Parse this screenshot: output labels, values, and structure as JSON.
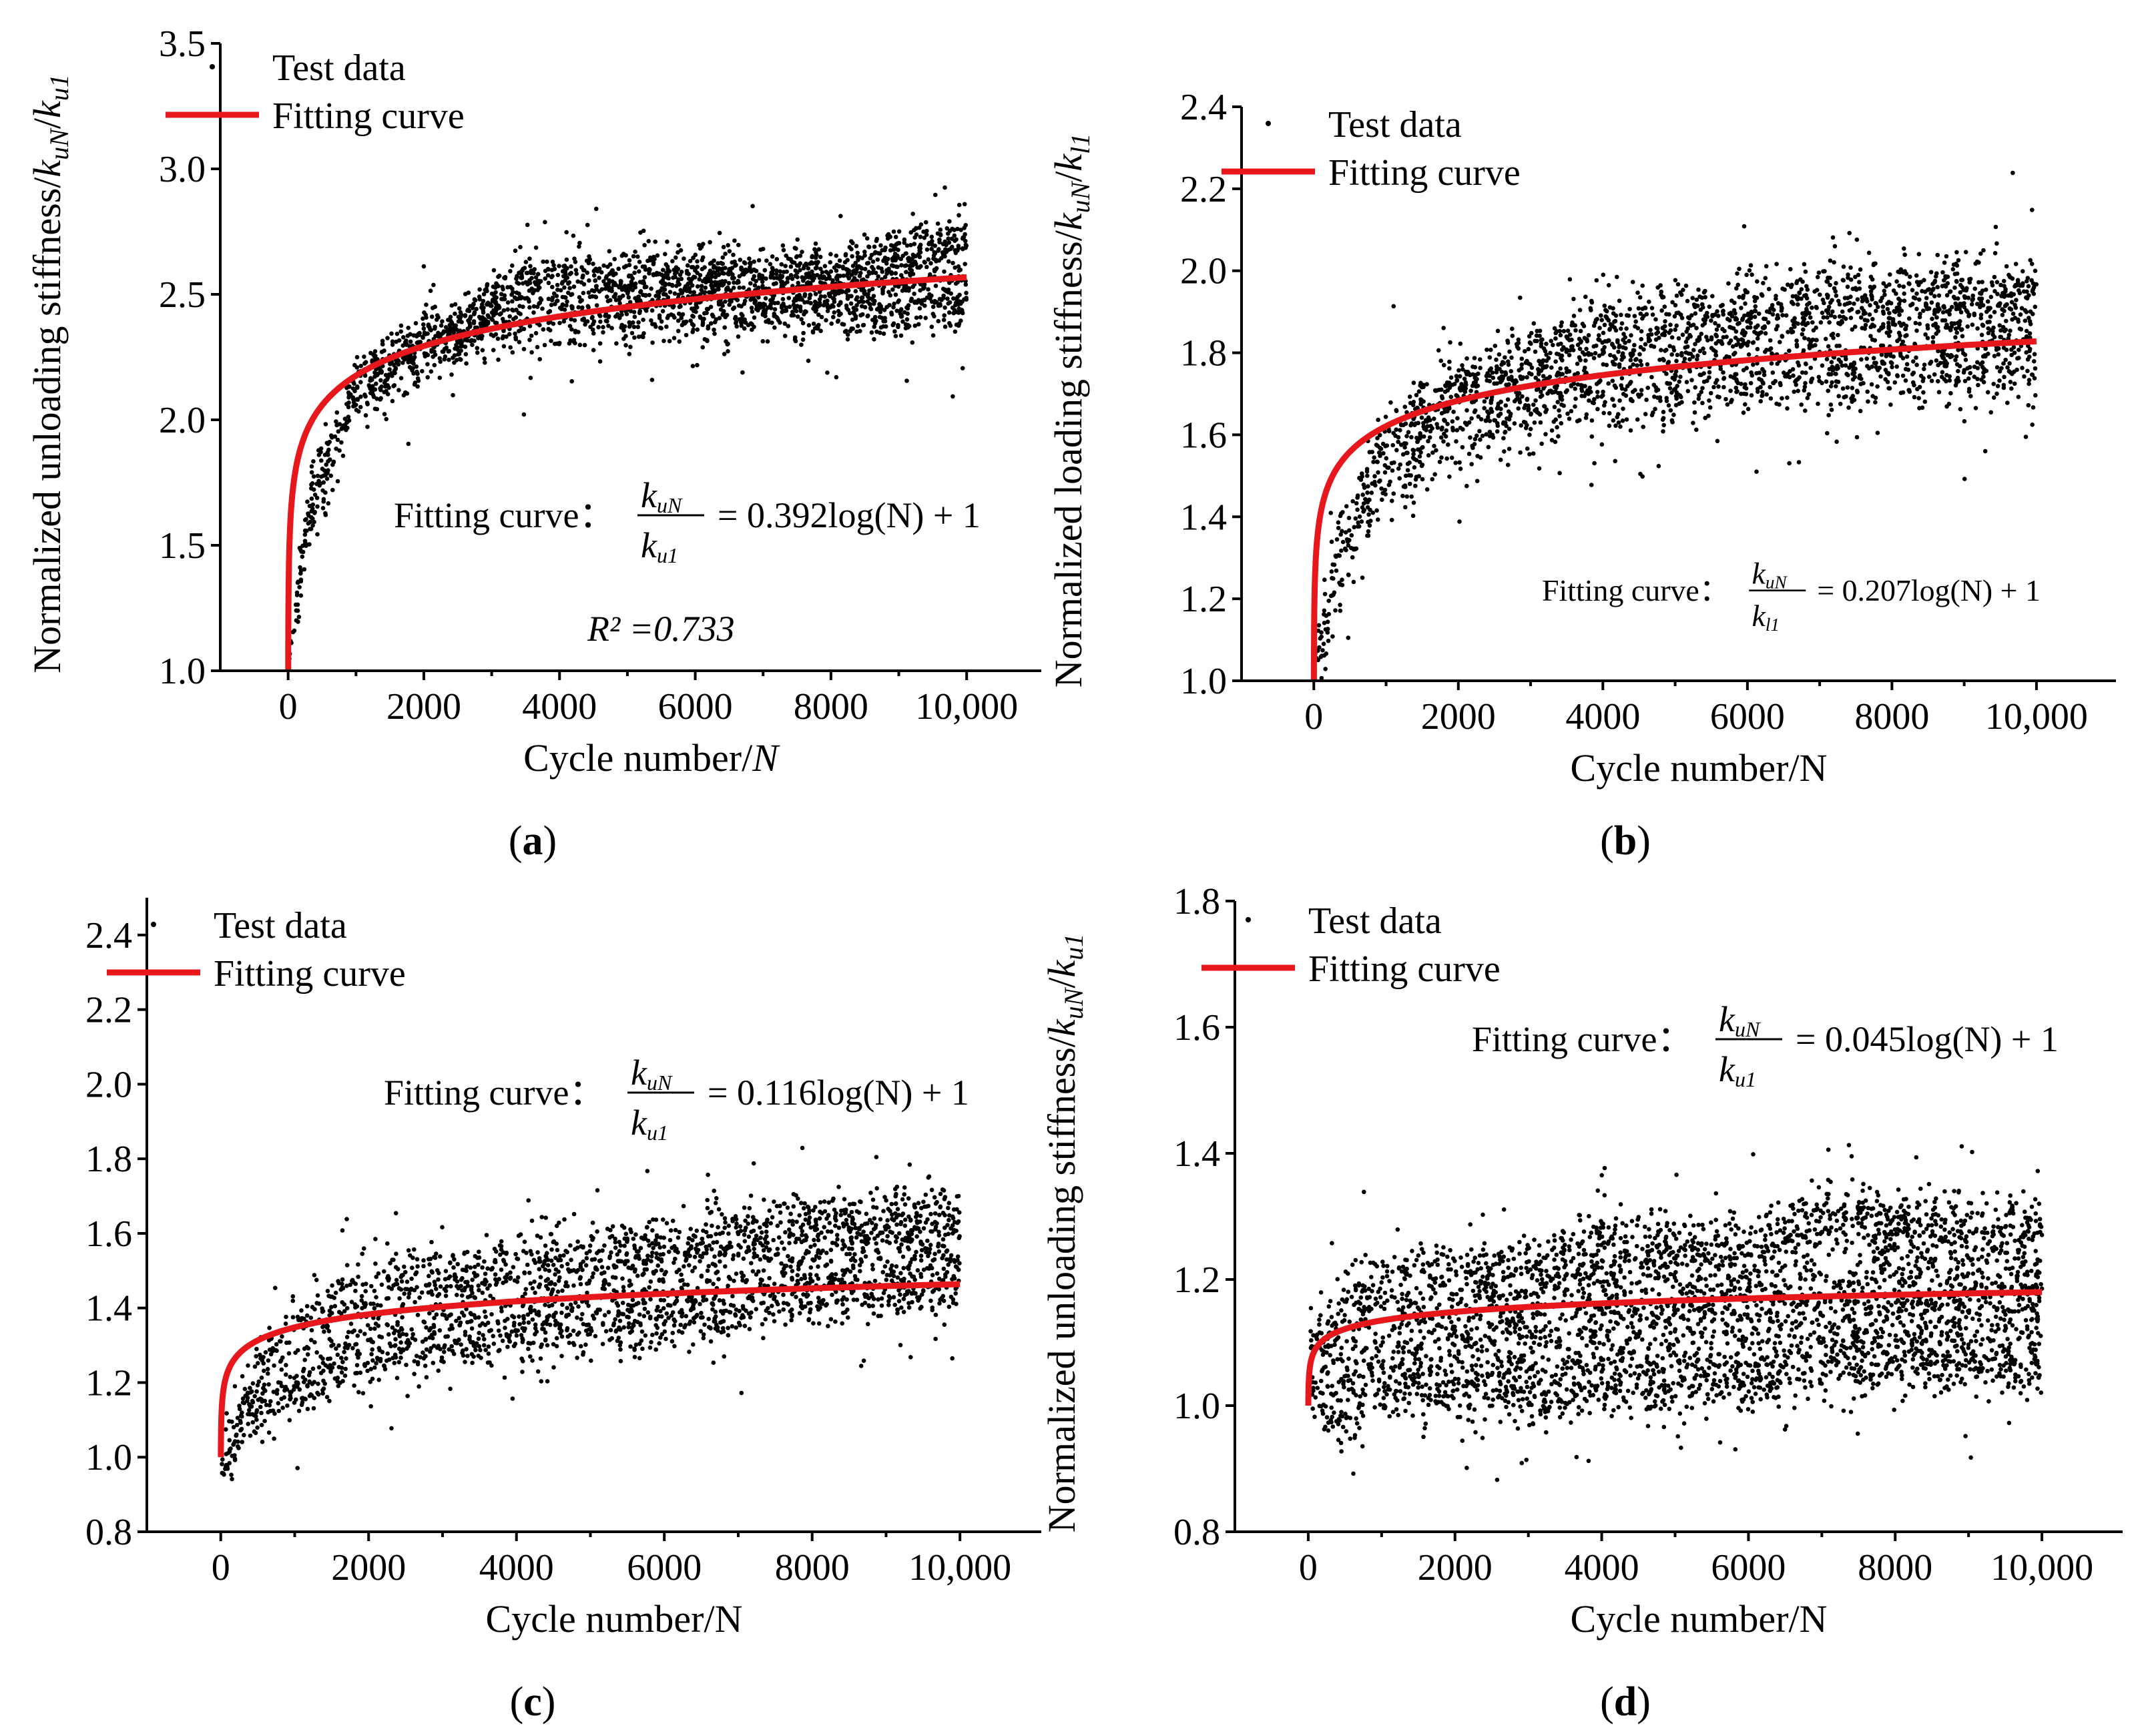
{
  "chart_data": [
    {
      "panel": "(a)",
      "panel_letter": "a",
      "type": "scatter",
      "ylabel": "Normalized unloading stiffness/k_uN/k_u1",
      "ylabel_parts": {
        "prefix": "Normalized unloading stiffness/",
        "k1": "k",
        "s1": "uN",
        "sep": "/",
        "k2": "k",
        "s2": "u1"
      },
      "xlabel": "Cycle number/N",
      "xlabel_parts": {
        "prefix": "Cycle number/",
        "var": "N",
        "var_italic": true
      },
      "xlim": [
        -1000,
        11100
      ],
      "ylim": [
        1.0,
        3.5
      ],
      "xticks": [
        0,
        2000,
        4000,
        6000,
        8000,
        10000
      ],
      "xtick_labels": [
        "0",
        "2000",
        "4000",
        "6000",
        "8000",
        "10,000"
      ],
      "yticks": [
        1.0,
        1.5,
        2.0,
        2.5,
        3.0,
        3.5
      ],
      "ytick_labels": [
        "1.0",
        "1.5",
        "2.0",
        "2.5",
        "3.0",
        "3.5"
      ],
      "legend": {
        "test_data": "Test data",
        "fitting_curve": "Fitting curve"
      },
      "fit": {
        "coef": 0.392,
        "intercept": 1
      },
      "equation": {
        "label": "Fitting curve：",
        "num": "k",
        "num_sub": "uN",
        "den": "k",
        "den_sub": "u1",
        "rhs": "= 0.392log(N) + 1"
      },
      "r2_text": "R² =0.733",
      "test_data_bands": [
        {
          "x": [
            0,
            300,
            1000,
            2000,
            3000,
            3500,
            5000,
            8000,
            9000,
            10000
          ],
          "y": [
            1.0,
            1.65,
            2.15,
            2.32,
            2.45,
            2.55,
            2.56,
            2.58,
            2.65,
            2.72
          ],
          "spread": 0.1
        },
        {
          "x": [
            0,
            300,
            1000,
            2000,
            3000,
            4000,
            6000,
            8000,
            10000
          ],
          "y": [
            1.0,
            1.6,
            2.1,
            2.28,
            2.38,
            2.42,
            2.45,
            2.47,
            2.5
          ],
          "spread": 0.12
        }
      ]
    },
    {
      "panel": "(b)",
      "panel_letter": "b",
      "type": "scatter",
      "ylabel": "Normalized loading stiffness/k_uN/k_l1",
      "ylabel_parts": {
        "prefix": "Normalized loading stiffness/",
        "k1": "k",
        "s1": "uN",
        "sep": "/",
        "k2": "k",
        "s2": "l1"
      },
      "xlabel": "Cycle number/N",
      "xlabel_parts": {
        "prefix": "Cycle number/N",
        "var": "",
        "var_italic": false
      },
      "xlim": [
        -1000,
        11100
      ],
      "ylim": [
        1.0,
        2.4
      ],
      "xticks": [
        0,
        2000,
        4000,
        6000,
        8000,
        10000
      ],
      "xtick_labels": [
        "0",
        "2000",
        "4000",
        "6000",
        "8000",
        "10,000"
      ],
      "yticks": [
        1.0,
        1.2,
        1.4,
        1.6,
        1.8,
        2.0,
        2.2,
        2.4
      ],
      "ytick_labels": [
        "1.0",
        "1.2",
        "1.4",
        "1.6",
        "1.8",
        "2.0",
        "2.2",
        "2.4"
      ],
      "legend": {
        "test_data": "Test data",
        "fitting_curve": "Fitting curve"
      },
      "fit": {
        "coef": 0.207,
        "intercept": 1
      },
      "equation": {
        "label": "Fitting curve：",
        "num": "k",
        "num_sub": "uN",
        "den": "k",
        "den_sub": "l1",
        "rhs": "= 0.207log(N) + 1"
      },
      "r2_text": "",
      "test_data_bands": [
        {
          "x": [
            0,
            300,
            1000,
            2000,
            4000,
            6000,
            8000,
            10000
          ],
          "y": [
            1.0,
            1.3,
            1.6,
            1.72,
            1.85,
            1.9,
            1.92,
            1.95
          ],
          "spread": 0.08
        },
        {
          "x": [
            0,
            300,
            1000,
            2000,
            4000,
            6000,
            8000,
            10000
          ],
          "y": [
            1.0,
            1.25,
            1.5,
            1.62,
            1.72,
            1.76,
            1.78,
            1.8
          ],
          "spread": 0.1
        }
      ]
    },
    {
      "panel": "(c)",
      "panel_letter": "c",
      "type": "scatter",
      "ylabel": "Normalized unloading stiffness/k_uN/k_u1",
      "ylabel_parts": {
        "prefix": "Normalized unloading stiffness/",
        "k1": "k",
        "s1": "uN",
        "sep": "/",
        "k2": "k",
        "s2": "u1"
      },
      "xlabel": "Cycle number/N",
      "xlabel_parts": {
        "prefix": "Cycle number/N",
        "var": "",
        "var_italic": false
      },
      "xlim": [
        -1000,
        11100
      ],
      "ylim": [
        0.8,
        2.5
      ],
      "xticks": [
        0,
        2000,
        4000,
        6000,
        8000,
        10000
      ],
      "xtick_labels": [
        "0",
        "2000",
        "4000",
        "6000",
        "8000",
        "10,000"
      ],
      "yticks": [
        0.8,
        1.0,
        1.2,
        1.4,
        1.6,
        1.8,
        2.0,
        2.2,
        2.4
      ],
      "ytick_labels": [
        "0.8",
        "1.0",
        "1.2",
        "1.4",
        "1.6",
        "1.8",
        "2.0",
        "2.2",
        "2.4"
      ],
      "legend": {
        "test_data": "Test data",
        "fitting_curve": "Fitting curve"
      },
      "fit": {
        "coef": 0.116,
        "intercept": 1
      },
      "equation": {
        "label": "Fitting curve：",
        "num": "k",
        "num_sub": "uN",
        "den": "k",
        "den_sub": "u1",
        "rhs": "= 0.116log(N) + 1"
      },
      "r2_text": "",
      "test_data_bands": [
        {
          "x": [
            0,
            300,
            1000,
            2000,
            4000,
            6000,
            8000,
            10000
          ],
          "y": [
            0.95,
            1.15,
            1.35,
            1.45,
            1.5,
            1.55,
            1.62,
            1.62
          ],
          "spread": 0.08
        },
        {
          "x": [
            0,
            300,
            1000,
            2000,
            4000,
            6000,
            8000,
            10000
          ],
          "y": [
            0.95,
            1.1,
            1.2,
            1.28,
            1.35,
            1.38,
            1.45,
            1.47
          ],
          "spread": 0.08
        }
      ]
    },
    {
      "panel": "(d)",
      "panel_letter": "d",
      "type": "scatter",
      "ylabel": "Normalized unloading stiffness/k_uN/k_u1",
      "ylabel_parts": {
        "prefix": "Normalized unloading stiffness/",
        "k1": "k",
        "s1": "uN",
        "sep": "/",
        "k2": "k",
        "s2": "u1"
      },
      "xlabel": "Cycle number/N",
      "xlabel_parts": {
        "prefix": "Cycle number/N",
        "var": "",
        "var_italic": false
      },
      "xlim": [
        -1000,
        11100
      ],
      "ylim": [
        0.8,
        1.8
      ],
      "xticks": [
        0,
        2000,
        4000,
        6000,
        8000,
        10000
      ],
      "xtick_labels": [
        "0",
        "2000",
        "4000",
        "6000",
        "8000",
        "10,000"
      ],
      "yticks": [
        0.8,
        1.0,
        1.2,
        1.4,
        1.6,
        1.8
      ],
      "ytick_labels": [
        "0.8",
        "1.0",
        "1.2",
        "1.4",
        "1.6",
        "1.8"
      ],
      "legend": {
        "test_data": "Test data",
        "fitting_curve": "Fitting curve"
      },
      "fit": {
        "coef": 0.045,
        "intercept": 1
      },
      "equation": {
        "label": "Fitting curve：",
        "num": "k",
        "num_sub": "uN",
        "den": "k",
        "den_sub": "u1",
        "rhs": "= 0.045log(N) + 1"
      },
      "r2_text": "",
      "test_data_bands": [
        {
          "x": [
            0,
            1000,
            2000,
            3000,
            4000,
            5000,
            6000,
            7000,
            8000,
            10000
          ],
          "y": [
            1.1,
            1.2,
            1.2,
            1.2,
            1.25,
            1.24,
            1.24,
            1.3,
            1.28,
            1.27
          ],
          "spread": 0.05
        },
        {
          "x": [
            0,
            1000,
            2000,
            3000,
            4000,
            5000,
            6000,
            7000,
            8000,
            10000
          ],
          "y": [
            1.05,
            1.1,
            1.12,
            1.1,
            1.15,
            1.15,
            1.15,
            1.18,
            1.17,
            1.17
          ],
          "spread": 0.06
        },
        {
          "x": [
            0,
            1000,
            2000,
            3000,
            4000,
            5000,
            6000,
            7000,
            8000,
            10000
          ],
          "y": [
            1.0,
            1.02,
            1.03,
            1.02,
            1.05,
            1.04,
            1.04,
            1.08,
            1.08,
            1.07
          ],
          "spread": 0.05
        }
      ]
    }
  ]
}
